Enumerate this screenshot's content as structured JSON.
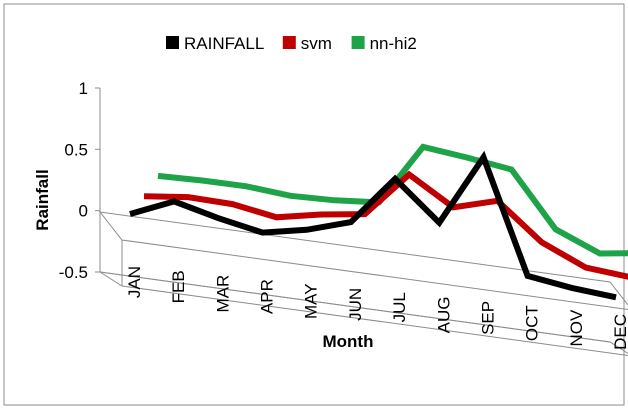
{
  "chart_data": {
    "type": "line",
    "title": "",
    "xlabel": "Month",
    "ylabel": "Rainfall",
    "categories": [
      "JAN",
      "FEB",
      "MAR",
      "APR",
      "MAY",
      "JUN",
      "JUL",
      "AUG",
      "SEP",
      "OCT",
      "NOV",
      "DEC"
    ],
    "yticks": [
      "1",
      "0.5",
      "0",
      "-0.5"
    ],
    "ylim": [
      -0.5,
      1
    ],
    "legend_position": "top",
    "series": [
      {
        "name": "RAINFALL",
        "color": "#000000",
        "values": [
          -0.02,
          0.11,
          0.0,
          -0.09,
          -0.04,
          0.05,
          0.43,
          0.1,
          0.66,
          -0.28,
          -0.35,
          -0.4
        ]
      },
      {
        "name": "svm",
        "color": "#c00000",
        "values": [
          0.06,
          0.08,
          0.05,
          -0.03,
          0.02,
          0.05,
          0.4,
          0.16,
          0.24,
          -0.07,
          -0.25,
          -0.3
        ]
      },
      {
        "name": "nn-hi2",
        "color": "#1fa349",
        "values": [
          0.16,
          0.15,
          0.13,
          0.08,
          0.07,
          0.08,
          0.56,
          0.5,
          0.43,
          -0.03,
          -0.2,
          -0.17
        ]
      }
    ]
  }
}
